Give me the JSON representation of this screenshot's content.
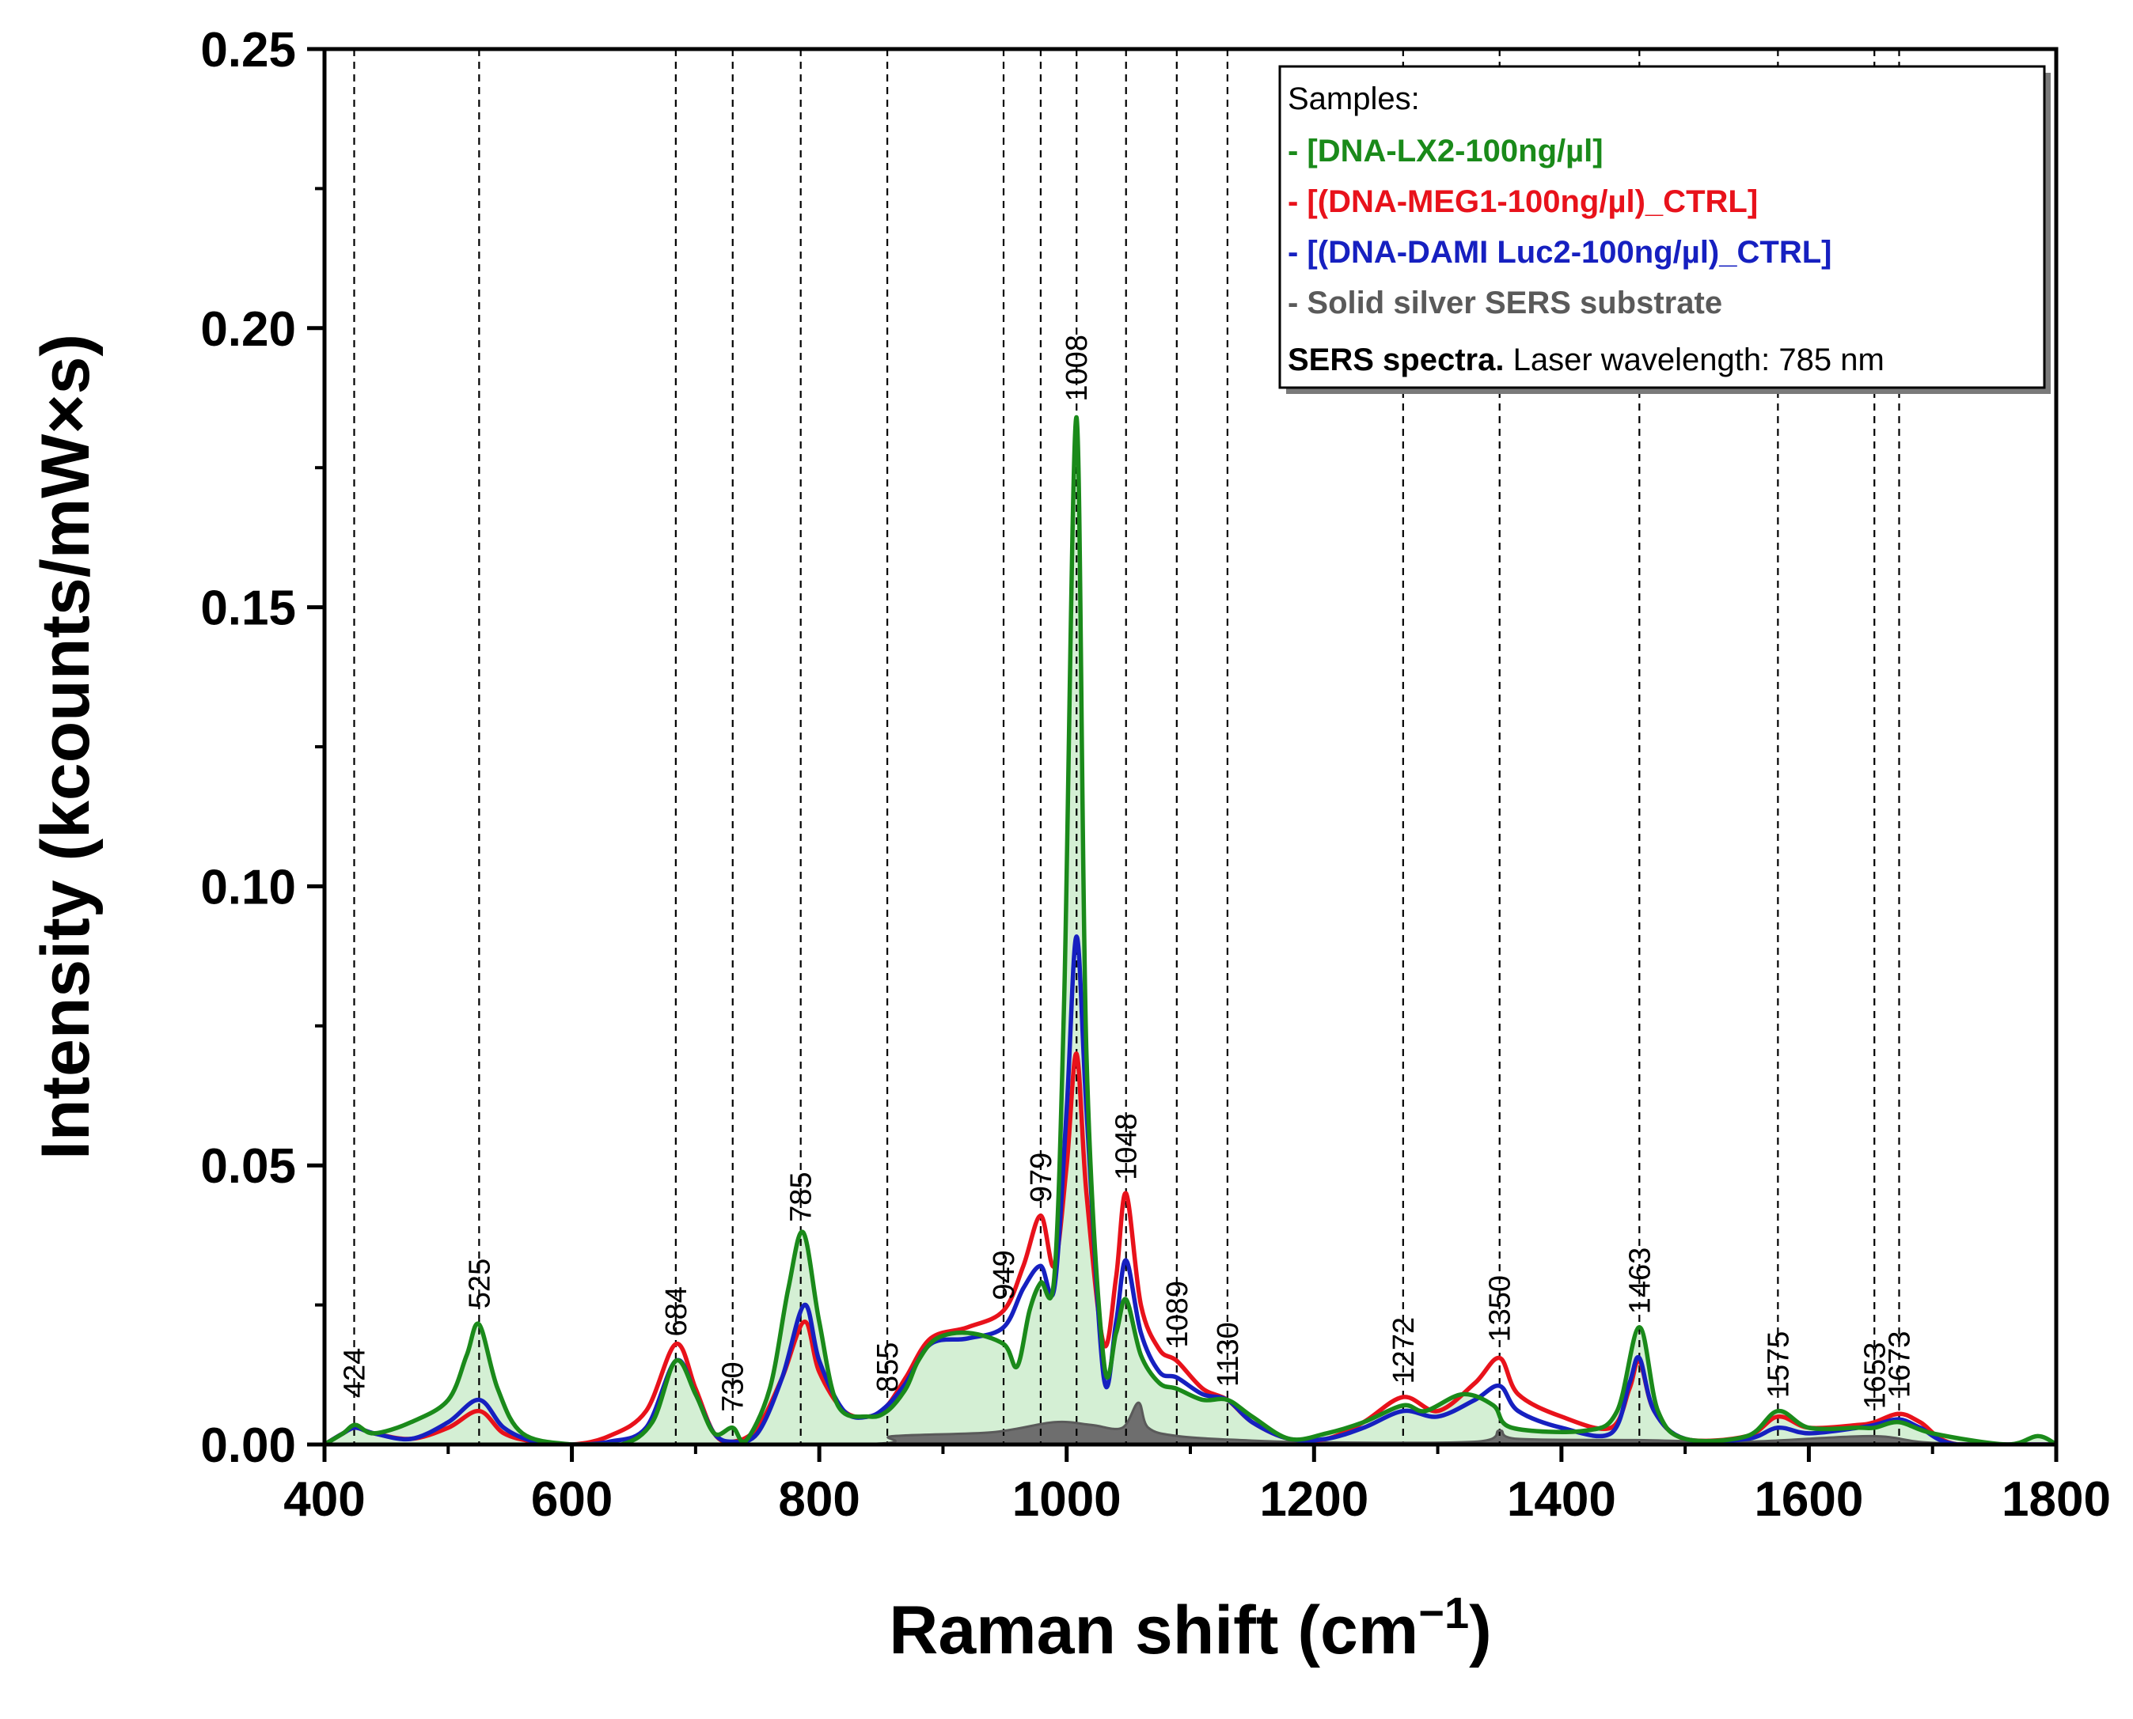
{
  "chart_data": {
    "type": "line",
    "xlabel": "Raman shift (cm",
    "xlabel_superscript": "−1",
    "xlabel_suffix": ")",
    "ylabel": "Intensity (kcounts/mW×s)",
    "xlim": [
      400,
      1800
    ],
    "ylim": [
      0,
      0.25
    ],
    "x_ticks": [
      400,
      600,
      800,
      1000,
      1200,
      1400,
      1600,
      1800
    ],
    "y_ticks": [
      0.0,
      0.05,
      0.1,
      0.15,
      0.2,
      0.25
    ],
    "x_tick_labels": [
      "400",
      "600",
      "800",
      "1000",
      "1200",
      "1400",
      "1600",
      "1800"
    ],
    "y_tick_labels": [
      "0.00",
      "0.05",
      "0.10",
      "0.15",
      "0.20",
      "0.25"
    ],
    "peak_markers": [
      {
        "x": 424,
        "label": "424"
      },
      {
        "x": 525,
        "label": "525"
      },
      {
        "x": 684,
        "label": "684"
      },
      {
        "x": 730,
        "label": "730"
      },
      {
        "x": 785,
        "label": "785"
      },
      {
        "x": 855,
        "label": "855"
      },
      {
        "x": 949,
        "label": "949"
      },
      {
        "x": 979,
        "label": "979"
      },
      {
        "x": 1008,
        "label": "1008"
      },
      {
        "x": 1048,
        "label": "1048"
      },
      {
        "x": 1089,
        "label": "1089"
      },
      {
        "x": 1130,
        "label": "1130"
      },
      {
        "x": 1272,
        "label": "1272"
      },
      {
        "x": 1350,
        "label": "1350"
      },
      {
        "x": 1463,
        "label": "1463"
      },
      {
        "x": 1575,
        "label": "1575"
      },
      {
        "x": 1653,
        "label": "1653"
      },
      {
        "x": 1673,
        "label": "1673"
      }
    ],
    "series": [
      {
        "name": "- Solid silver SERS substrate",
        "color": "#5a5a5a",
        "fill": "#6e6e6e",
        "points": [
          [
            400,
            0
          ],
          [
            820,
            0.0
          ],
          [
            860,
            0.0015
          ],
          [
            940,
            0.0022
          ],
          [
            990,
            0.004
          ],
          [
            1020,
            0.0035
          ],
          [
            1045,
            0.003
          ],
          [
            1058,
            0.0075
          ],
          [
            1066,
            0.003
          ],
          [
            1090,
            0.0015
          ],
          [
            1140,
            0.0008
          ],
          [
            1200,
            0.0004
          ],
          [
            1330,
            0.0005
          ],
          [
            1350,
            0.0025
          ],
          [
            1365,
            0.001
          ],
          [
            1460,
            0.0008
          ],
          [
            1550,
            0.0005
          ],
          [
            1650,
            0.0015
          ],
          [
            1700,
            0.0003
          ],
          [
            1800,
            0
          ]
        ]
      },
      {
        "name": "- [(DNA-MEG1-100ng/µl)_CTRL]",
        "color": "#e8121b",
        "points": [
          [
            400,
            0.0
          ],
          [
            415,
            0.002
          ],
          [
            425,
            0.003
          ],
          [
            440,
            0.002
          ],
          [
            470,
            0.001
          ],
          [
            500,
            0.003
          ],
          [
            525,
            0.006
          ],
          [
            545,
            0.002
          ],
          [
            570,
            0.0005
          ],
          [
            600,
            0.0
          ],
          [
            630,
            0.0015
          ],
          [
            660,
            0.006
          ],
          [
            684,
            0.018
          ],
          [
            700,
            0.01
          ],
          [
            715,
            0.002
          ],
          [
            730,
            0.0005
          ],
          [
            750,
            0.003
          ],
          [
            770,
            0.012
          ],
          [
            788,
            0.022
          ],
          [
            800,
            0.013
          ],
          [
            820,
            0.006
          ],
          [
            840,
            0.005
          ],
          [
            855,
            0.007
          ],
          [
            870,
            0.012
          ],
          [
            890,
            0.019
          ],
          [
            920,
            0.021
          ],
          [
            949,
            0.024
          ],
          [
            965,
            0.032
          ],
          [
            979,
            0.041
          ],
          [
            990,
            0.032
          ],
          [
            1000,
            0.05
          ],
          [
            1008,
            0.07
          ],
          [
            1016,
            0.045
          ],
          [
            1030,
            0.018
          ],
          [
            1040,
            0.03
          ],
          [
            1048,
            0.045
          ],
          [
            1060,
            0.025
          ],
          [
            1075,
            0.017
          ],
          [
            1089,
            0.015
          ],
          [
            1110,
            0.01
          ],
          [
            1130,
            0.008
          ],
          [
            1150,
            0.004
          ],
          [
            1180,
            0.001
          ],
          [
            1210,
            0.001
          ],
          [
            1240,
            0.004
          ],
          [
            1272,
            0.0085
          ],
          [
            1300,
            0.006
          ],
          [
            1330,
            0.011
          ],
          [
            1350,
            0.0155
          ],
          [
            1365,
            0.009
          ],
          [
            1400,
            0.005
          ],
          [
            1440,
            0.003
          ],
          [
            1455,
            0.01
          ],
          [
            1463,
            0.015
          ],
          [
            1475,
            0.006
          ],
          [
            1500,
            0.001
          ],
          [
            1550,
            0.0015
          ],
          [
            1575,
            0.005
          ],
          [
            1600,
            0.003
          ],
          [
            1640,
            0.0035
          ],
          [
            1653,
            0.004
          ],
          [
            1673,
            0.0055
          ],
          [
            1690,
            0.004
          ],
          [
            1720,
            0.0
          ],
          [
            1800,
            0.0
          ]
        ]
      },
      {
        "name": "- [(DNA-DAMI Luc2-100ng/µl)_CTRL]",
        "color": "#1620c0",
        "points": [
          [
            400,
            0.0
          ],
          [
            415,
            0.002
          ],
          [
            425,
            0.003
          ],
          [
            440,
            0.002
          ],
          [
            470,
            0.001
          ],
          [
            500,
            0.004
          ],
          [
            525,
            0.008
          ],
          [
            545,
            0.003
          ],
          [
            570,
            0.0005
          ],
          [
            600,
            0.0
          ],
          [
            630,
            0.0005
          ],
          [
            660,
            0.003
          ],
          [
            684,
            0.015
          ],
          [
            700,
            0.009
          ],
          [
            715,
            0.002
          ],
          [
            730,
            0.0005
          ],
          [
            750,
            0.002
          ],
          [
            770,
            0.012
          ],
          [
            788,
            0.025
          ],
          [
            800,
            0.015
          ],
          [
            820,
            0.006
          ],
          [
            840,
            0.005
          ],
          [
            855,
            0.007
          ],
          [
            870,
            0.011
          ],
          [
            890,
            0.018
          ],
          [
            920,
            0.019
          ],
          [
            949,
            0.021
          ],
          [
            965,
            0.028
          ],
          [
            979,
            0.032
          ],
          [
            990,
            0.028
          ],
          [
            1000,
            0.06
          ],
          [
            1008,
            0.091
          ],
          [
            1016,
            0.06
          ],
          [
            1030,
            0.012
          ],
          [
            1040,
            0.022
          ],
          [
            1048,
            0.033
          ],
          [
            1060,
            0.02
          ],
          [
            1075,
            0.013
          ],
          [
            1089,
            0.012
          ],
          [
            1110,
            0.009
          ],
          [
            1130,
            0.008
          ],
          [
            1150,
            0.004
          ],
          [
            1180,
            0.001
          ],
          [
            1210,
            0.001
          ],
          [
            1240,
            0.003
          ],
          [
            1272,
            0.006
          ],
          [
            1300,
            0.005
          ],
          [
            1330,
            0.008
          ],
          [
            1350,
            0.0105
          ],
          [
            1365,
            0.006
          ],
          [
            1400,
            0.003
          ],
          [
            1440,
            0.002
          ],
          [
            1455,
            0.011
          ],
          [
            1463,
            0.0155
          ],
          [
            1475,
            0.006
          ],
          [
            1500,
            0.001
          ],
          [
            1550,
            0.001
          ],
          [
            1575,
            0.003
          ],
          [
            1600,
            0.002
          ],
          [
            1640,
            0.003
          ],
          [
            1653,
            0.0035
          ],
          [
            1673,
            0.0045
          ],
          [
            1690,
            0.003
          ],
          [
            1720,
            0.0
          ],
          [
            1800,
            0.0
          ]
        ]
      },
      {
        "name": "- [DNA-LX2-100ng/µl]",
        "color": "#1a8a1a",
        "fill": "#d4efd4",
        "points": [
          [
            400,
            0.0
          ],
          [
            415,
            0.002
          ],
          [
            425,
            0.0035
          ],
          [
            440,
            0.002
          ],
          [
            470,
            0.004
          ],
          [
            500,
            0.008
          ],
          [
            515,
            0.016
          ],
          [
            525,
            0.0215
          ],
          [
            540,
            0.01
          ],
          [
            560,
            0.002
          ],
          [
            600,
            0.0
          ],
          [
            640,
            0.0
          ],
          [
            665,
            0.004
          ],
          [
            684,
            0.015
          ],
          [
            700,
            0.009
          ],
          [
            715,
            0.002
          ],
          [
            730,
            0.003
          ],
          [
            740,
            0.0005
          ],
          [
            760,
            0.01
          ],
          [
            775,
            0.028
          ],
          [
            787,
            0.038
          ],
          [
            800,
            0.022
          ],
          [
            815,
            0.007
          ],
          [
            840,
            0.005
          ],
          [
            855,
            0.006
          ],
          [
            870,
            0.01
          ],
          [
            880,
            0.015
          ],
          [
            895,
            0.019
          ],
          [
            920,
            0.02
          ],
          [
            949,
            0.018
          ],
          [
            960,
            0.014
          ],
          [
            970,
            0.024
          ],
          [
            979,
            0.029
          ],
          [
            990,
            0.03
          ],
          [
            998,
            0.08
          ],
          [
            1008,
            0.184
          ],
          [
            1016,
            0.07
          ],
          [
            1030,
            0.015
          ],
          [
            1040,
            0.02
          ],
          [
            1048,
            0.026
          ],
          [
            1060,
            0.016
          ],
          [
            1075,
            0.011
          ],
          [
            1089,
            0.01
          ],
          [
            1110,
            0.008
          ],
          [
            1130,
            0.008
          ],
          [
            1150,
            0.005
          ],
          [
            1180,
            0.001
          ],
          [
            1210,
            0.002
          ],
          [
            1240,
            0.004
          ],
          [
            1272,
            0.007
          ],
          [
            1290,
            0.006
          ],
          [
            1320,
            0.009
          ],
          [
            1345,
            0.007
          ],
          [
            1360,
            0.003
          ],
          [
            1420,
            0.0025
          ],
          [
            1445,
            0.006
          ],
          [
            1463,
            0.021
          ],
          [
            1478,
            0.006
          ],
          [
            1500,
            0.001
          ],
          [
            1550,
            0.0015
          ],
          [
            1575,
            0.006
          ],
          [
            1600,
            0.003
          ],
          [
            1640,
            0.003
          ],
          [
            1653,
            0.003
          ],
          [
            1673,
            0.004
          ],
          [
            1700,
            0.002
          ],
          [
            1760,
            0.0
          ],
          [
            1785,
            0.0015
          ],
          [
            1800,
            0.0
          ]
        ]
      }
    ],
    "legend": {
      "position": "top-right",
      "title": "Samples:",
      "entries": [
        {
          "label": "- [DNA-LX2-100ng/µl]",
          "color": "#1a8a1a"
        },
        {
          "label": "- [(DNA-MEG1-100ng/µl)_CTRL]",
          "color": "#e8121b"
        },
        {
          "label": "- [(DNA-DAMI Luc2-100ng/µl)_CTRL]",
          "color": "#1620c0"
        },
        {
          "label": "- Solid silver SERS substrate",
          "color": "#5a5a5a"
        }
      ],
      "note_bold": "SERS spectra.",
      "note_text": " Laser wavelength: 785 nm"
    }
  }
}
